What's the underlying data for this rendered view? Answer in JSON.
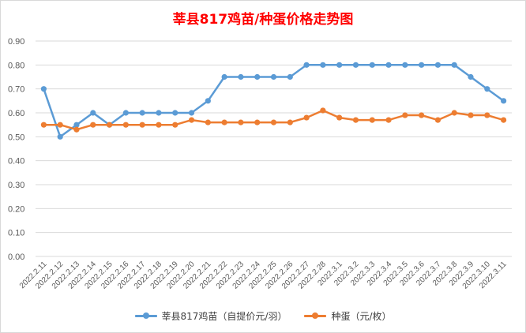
{
  "chart_data": {
    "type": "line",
    "title": "莘县817鸡苗/种蛋价格走势图",
    "title_color": "#ff0000",
    "x": [
      "2022.2.11",
      "2022.2.12",
      "2022.2.13",
      "2022.2.14",
      "2022.2.15",
      "2022.2.16",
      "2022.2.17",
      "2022.2.18",
      "2022.2.19",
      "2022.2.20",
      "2022.2.21",
      "2022.2.22",
      "2022.2.23",
      "2022.2.24",
      "2022.2.25",
      "2022.2.26",
      "2022.2.27",
      "2022.2.28",
      "2022.3.1",
      "2022.3.2",
      "2022.3.3",
      "2022.3.4",
      "2022.3.5",
      "2022.3.6",
      "2022.3.7",
      "2022.3.8",
      "2022.3.9",
      "2022.3.10",
      "2022.3.11"
    ],
    "series": [
      {
        "name": "莘县817鸡苗（自提价元/羽）",
        "color": "#5b9bd5",
        "values": [
          0.7,
          0.5,
          0.55,
          0.6,
          0.55,
          0.6,
          0.6,
          0.6,
          0.6,
          0.6,
          0.65,
          0.75,
          0.75,
          0.75,
          0.75,
          0.75,
          0.8,
          0.8,
          0.8,
          0.8,
          0.8,
          0.8,
          0.8,
          0.8,
          0.8,
          0.8,
          0.75,
          0.7,
          0.65
        ]
      },
      {
        "name": "种蛋（元/枚）",
        "color": "#ed7d31",
        "values": [
          0.55,
          0.55,
          0.53,
          0.55,
          0.55,
          0.55,
          0.55,
          0.55,
          0.55,
          0.57,
          0.56,
          0.56,
          0.56,
          0.56,
          0.56,
          0.56,
          0.58,
          0.61,
          0.58,
          0.57,
          0.57,
          0.57,
          0.59,
          0.59,
          0.57,
          0.6,
          0.59,
          0.59,
          0.57
        ]
      }
    ],
    "y_ticks": [
      "0.00",
      "0.10",
      "0.20",
      "0.30",
      "0.40",
      "0.50",
      "0.60",
      "0.70",
      "0.80",
      "0.90"
    ],
    "ylim": [
      0,
      0.9
    ],
    "grid": true,
    "legend_position": "bottom"
  }
}
